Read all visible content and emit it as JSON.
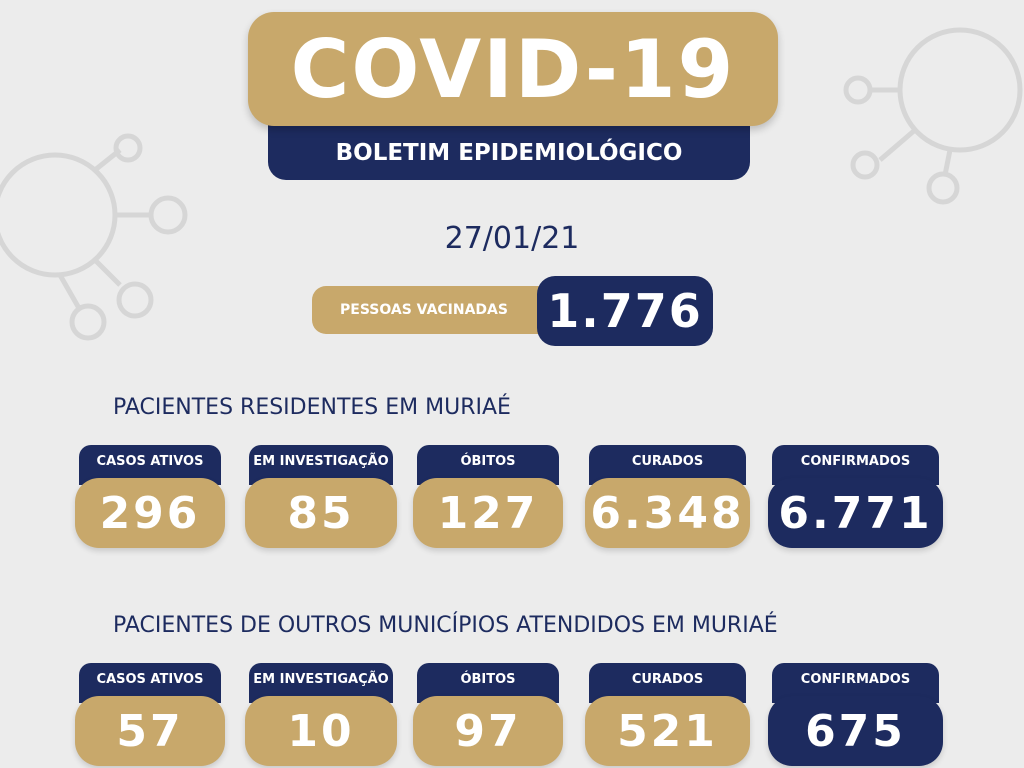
{
  "header": {
    "title": "COVID-19",
    "subtitle": "BOLETIM EPIDEMIOLÓGICO"
  },
  "date": "27/01/21",
  "vaccinated": {
    "label": "PESSOAS VACINADAS",
    "value": "1.776"
  },
  "sections": [
    {
      "title": "PACIENTES RESIDENTES EM MURIAÉ",
      "cards": [
        {
          "label": "CASOS ATIVOS",
          "value": "296"
        },
        {
          "label": "EM INVESTIGAÇÃO",
          "value": "85"
        },
        {
          "label": "ÓBITOS",
          "value": "127"
        },
        {
          "label": "CURADOS",
          "value": "6.348"
        },
        {
          "label": "CONFIRMADOS",
          "value": "6.771"
        }
      ]
    },
    {
      "title": "PACIENTES DE OUTROS MUNICÍPIOS ATENDIDOS EM MURIAÉ",
      "cards": [
        {
          "label": "CASOS ATIVOS",
          "value": "57"
        },
        {
          "label": "EM INVESTIGAÇÃO",
          "value": "10"
        },
        {
          "label": "ÓBITOS",
          "value": "97"
        },
        {
          "label": "CURADOS",
          "value": "521"
        },
        {
          "label": "CONFIRMADOS",
          "value": "675"
        }
      ]
    }
  ]
}
